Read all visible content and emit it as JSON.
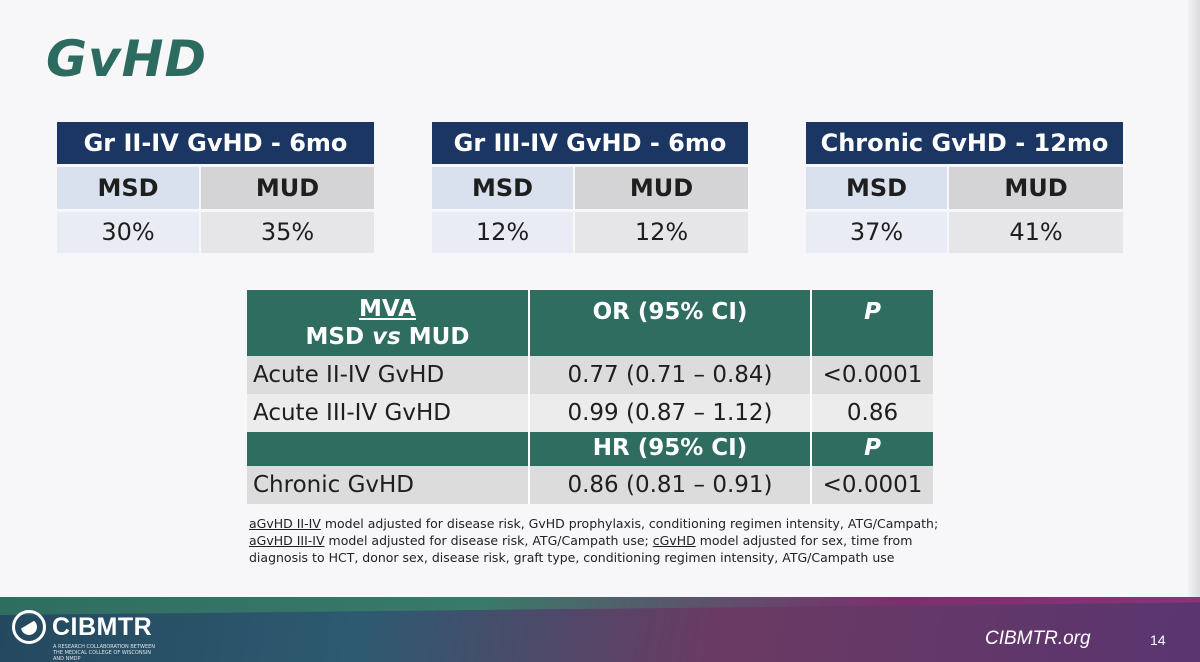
{
  "title": "GvHD",
  "outcome_tables": [
    {
      "header": "Gr II-IV GvHD - 6mo",
      "col1": "MSD",
      "col2": "MUD",
      "val1": "30%",
      "val2": "35%"
    },
    {
      "header": "Gr III-IV GvHD - 6mo",
      "col1": "MSD",
      "col2": "MUD",
      "val1": "12%",
      "val2": "12%"
    },
    {
      "header": "Chronic GvHD - 12mo",
      "col1": "MSD",
      "col2": "MUD",
      "val1": "37%",
      "val2": "41%"
    }
  ],
  "mva": {
    "title_line1": "MVA",
    "title_line2_a": "MSD ",
    "title_line2_vs": "vs",
    "title_line2_b": " MUD",
    "col_or": "OR (95% CI)",
    "col_p": "P",
    "rows": [
      {
        "label": "Acute II-IV GvHD",
        "estimate": "0.77 (0.71 – 0.84)",
        "p": "<0.0001"
      },
      {
        "label": "Acute III-IV GvHD",
        "estimate": "0.99 (0.87 – 1.12)",
        "p": "0.86"
      }
    ],
    "col_hr": "HR (95% CI)",
    "col_p2": "P",
    "chronic_row": {
      "label": "Chronic GvHD",
      "estimate": "0.86 (0.81 – 0.91)",
      "p": "<0.0001"
    }
  },
  "footnote": {
    "a_term": "aGvHD II-IV",
    "a_text": " model adjusted for disease risk, GvHD prophylaxis, conditioning regimen intensity, ATG/Campath; ",
    "b_term": "aGvHD III-IV",
    "b_text": " model adjusted for disease risk, ATG/Campath use; ",
    "c_term": "cGvHD",
    "c_text": " model adjusted for sex, time from diagnosis to HCT, donor sex, disease risk, graft type, conditioning regimen intensity, ATG/Campath use"
  },
  "footer": {
    "logo_text": "CIBMTR",
    "logo_sub": "A RESEARCH COLLABORATION BETWEEN THE MEDICAL COLLEGE OF WISCONSIN AND NMDP",
    "site": "CIBMTR.org",
    "page": "14"
  },
  "colors": {
    "title_teal": "#2d6b60",
    "navy": "#1b3663",
    "table_teal": "#2f6d61"
  }
}
